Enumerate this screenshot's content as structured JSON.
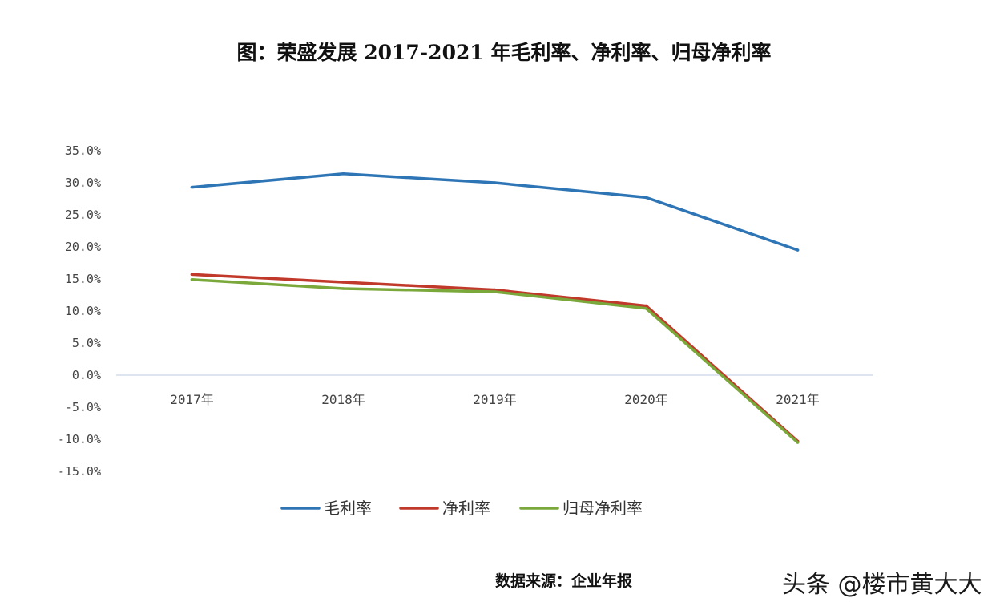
{
  "chart_data": {
    "type": "line",
    "title": "图：荣盛发展 2017-2021 年毛利率、净利率、归母净利率",
    "categories": [
      "2017年",
      "2018年",
      "2019年",
      "2020年",
      "2021年"
    ],
    "ylim": [
      -15,
      35
    ],
    "yticks": [
      35,
      30,
      25,
      20,
      15,
      10,
      5,
      0,
      -5,
      -10,
      -15
    ],
    "ytick_labels": [
      "35.0%",
      "30.0%",
      "25.0%",
      "20.0%",
      "15.0%",
      "10.0%",
      "5.0%",
      "0.0%",
      "-5.0%",
      "-10.0%",
      "-15.0%"
    ],
    "grid": false,
    "legend_position": "bottom",
    "series": [
      {
        "name": "毛利率",
        "color": "#2e75b6",
        "values": [
          29.3,
          31.4,
          30.0,
          27.7,
          19.5
        ]
      },
      {
        "name": "净利率",
        "color": "#c0392b",
        "values": [
          15.7,
          14.5,
          13.3,
          10.8,
          -10.3
        ]
      },
      {
        "name": "归母净利率",
        "color": "#7aa83a",
        "values": [
          14.9,
          13.5,
          13.0,
          10.4,
          -10.5
        ]
      }
    ]
  },
  "footer": {
    "source": "数据来源：企业年报",
    "watermark": "头条 @楼市黄大大"
  }
}
